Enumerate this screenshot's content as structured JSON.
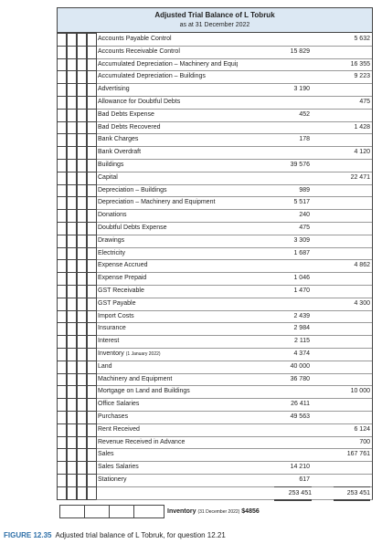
{
  "header": {
    "title": "Adjusted Trial Balance of L Tobruk",
    "subtitle": "as at 31 December 2022"
  },
  "table": {
    "rows": [
      {
        "account": "Accounts Payable Control",
        "credit": "5 632"
      },
      {
        "account": "Accounts Receivable Control",
        "debit": "15 829"
      },
      {
        "account": "Accumulated Depreciation – Machinery and Equipment",
        "credit": "16 355"
      },
      {
        "account": "Accumulated Depreciation – Buildings",
        "credit": "9 223"
      },
      {
        "account": "Advertising",
        "debit": "3 190"
      },
      {
        "account": "Allowance for Doubtful Debts",
        "credit": "475"
      },
      {
        "account": "Bad Debts Expense",
        "debit": "452"
      },
      {
        "account": "Bad Debts Recovered",
        "credit": "1 428"
      },
      {
        "account": "Bank Charges",
        "debit": "178"
      },
      {
        "account": "Bank Overdraft",
        "credit": "4 120"
      },
      {
        "account": "Buildings",
        "debit": "39 576"
      },
      {
        "account": "Capital",
        "credit": "22 471"
      },
      {
        "account": "Depreciation – Buildings",
        "debit": "989"
      },
      {
        "account": "Depreciation – Machinery and Equipment",
        "debit": "5 517"
      },
      {
        "account": "Donations",
        "debit": "240"
      },
      {
        "account": "Doubtful Debts Expense",
        "debit": "475"
      },
      {
        "account": "Drawings",
        "debit": "3 309"
      },
      {
        "account": "Electricity",
        "debit": "1 687"
      },
      {
        "account": "Expense Accrued",
        "credit": "4 862"
      },
      {
        "account": "Expense Prepaid",
        "debit": "1 046"
      },
      {
        "account": "GST Receivable",
        "debit": "1 470"
      },
      {
        "account": "GST Payable",
        "credit": "4 300"
      },
      {
        "account": "Import Costs",
        "debit": "2 439"
      },
      {
        "account": "Insurance",
        "debit": "2 984"
      },
      {
        "account": "Interest",
        "debit": "2 115"
      },
      {
        "account": "Inventory",
        "note": "(1 January 2022)",
        "debit": "4 374"
      },
      {
        "account": "Land",
        "debit": "40 000"
      },
      {
        "account": "Machinery and Equipment",
        "debit": "36 780"
      },
      {
        "account": "Mortgage on Land and Buildings",
        "credit": "10 000"
      },
      {
        "account": "Office Salaries",
        "debit": "26 411"
      },
      {
        "account": "Purchases",
        "debit": "49 563"
      },
      {
        "account": "Rent Received",
        "credit": "6 124"
      },
      {
        "account": "Revenue Received in Advance",
        "credit": "700"
      },
      {
        "account": "Sales",
        "credit": "167 761"
      },
      {
        "account": "Sales Salaries",
        "debit": "14 210"
      },
      {
        "account": "Stationery",
        "debit": "617"
      }
    ],
    "totals": {
      "debit": "253 451",
      "credit": "253 451"
    }
  },
  "footer": {
    "label": "Inventory",
    "note": "(31 December 2022)",
    "amount": "$4856"
  },
  "caption": {
    "number": "FIGURE 12.35",
    "text": "Adjusted trial balance of L Tobruk, for question 12.21"
  }
}
